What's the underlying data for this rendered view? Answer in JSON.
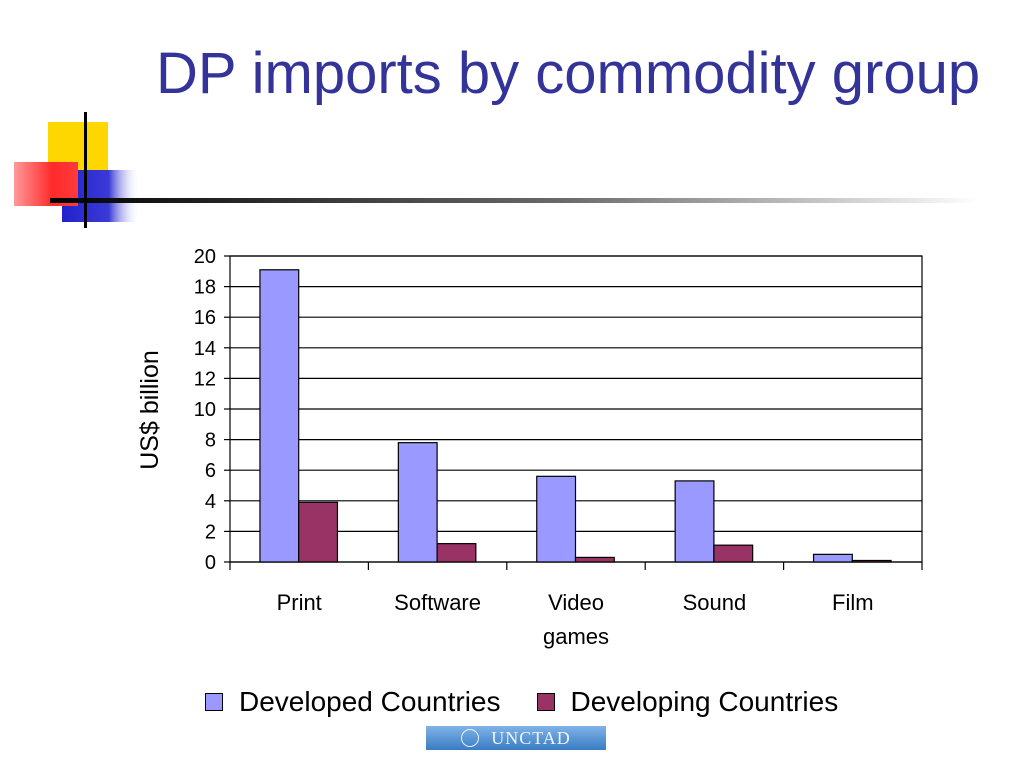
{
  "slide": {
    "title": "DP imports by commodity group",
    "logo_text": "UNCTAD"
  },
  "colors": {
    "title": "#333399",
    "developed": "#9999FF",
    "developing": "#993366",
    "deco_yellow": "#FFD700",
    "deco_red": "#FF3333",
    "deco_blue": "#3333CC"
  },
  "chart_data": {
    "type": "bar",
    "categories": [
      [
        "Print"
      ],
      [
        "Software"
      ],
      [
        "Video",
        "games"
      ],
      [
        "Sound"
      ],
      [
        "Film"
      ]
    ],
    "series": [
      {
        "name": "Developed Countries",
        "color": "#9999FF",
        "values": [
          19.1,
          7.8,
          5.6,
          5.3,
          0.5
        ]
      },
      {
        "name": "Developing Countries",
        "color": "#993366",
        "values": [
          3.9,
          1.2,
          0.3,
          1.1,
          0.1
        ]
      }
    ],
    "title": "",
    "xlabel": "",
    "ylabel": "US$ billion",
    "ylim": [
      0,
      20
    ],
    "yticks": [
      0,
      2,
      4,
      6,
      8,
      10,
      12,
      14,
      16,
      18,
      20
    ],
    "grid": true,
    "legend_position": "bottom"
  }
}
